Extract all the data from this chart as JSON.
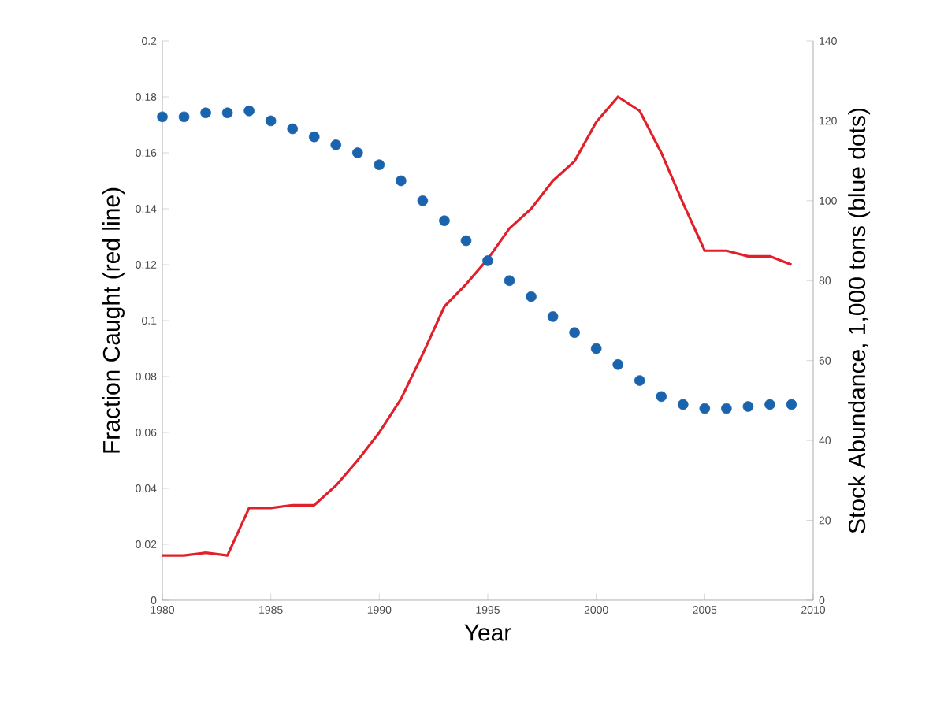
{
  "chart_data": {
    "type": "line",
    "xlabel": "Year",
    "ylabel": "Fraction Caught (red line)",
    "y2label": "Stock Abundance, 1,000 tons (blue dots)",
    "x": [
      1980,
      1981,
      1982,
      1983,
      1984,
      1985,
      1986,
      1987,
      1988,
      1989,
      1990,
      1991,
      1992,
      1993,
      1994,
      1995,
      1996,
      1997,
      1998,
      1999,
      2000,
      2001,
      2002,
      2003,
      2004,
      2005,
      2006,
      2007,
      2008,
      2009
    ],
    "series": [
      {
        "color": "#e0202a",
        "marker": "none",
        "values": [
          0.016,
          0.016,
          0.017,
          0.016,
          0.033,
          0.033,
          0.034,
          0.034,
          0.041,
          0.05,
          0.06,
          0.072,
          0.088,
          0.105,
          0.113,
          0.122,
          0.133,
          0.14,
          0.15,
          0.157,
          0.171,
          0.18,
          0.175,
          0.16,
          0.142,
          0.125,
          0.125,
          0.123,
          0.123,
          0.12
        ]
      },
      {
        "type": "scatter",
        "axis": "y2",
        "color": "#1a63ad",
        "marker": "circle",
        "values": [
          121,
          121,
          122,
          122,
          122.5,
          120,
          118,
          116,
          114,
          112,
          109,
          105,
          100,
          95,
          90,
          85,
          80,
          76,
          71,
          67,
          63,
          59,
          55,
          51,
          49,
          48,
          48,
          48.5,
          49,
          49
        ]
      }
    ],
    "xlim": [
      1980,
      2010
    ],
    "xticks": [
      1980,
      1985,
      1990,
      1995,
      2000,
      2005,
      2010
    ],
    "ylim": [
      0,
      0.2
    ],
    "yticks": [
      0,
      0.02,
      0.04,
      0.06,
      0.08,
      0.1,
      0.12,
      0.14,
      0.16,
      0.18,
      0.2
    ],
    "y2lim": [
      0,
      140
    ],
    "y2ticks": [
      0,
      20,
      40,
      60,
      80,
      100,
      120,
      140
    ],
    "grid": false
  }
}
